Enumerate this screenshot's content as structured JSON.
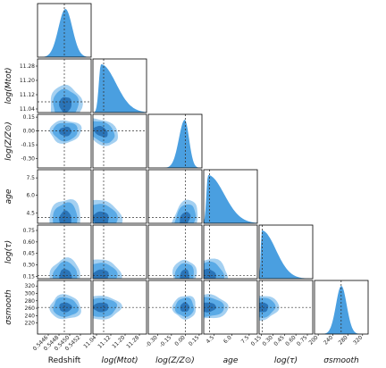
{
  "chart_data": {
    "type": "corner",
    "grid": false,
    "colors": {
      "outer": "#5aaae6",
      "inner": "#2a74b8",
      "hist": "#4a9fe0",
      "frame": "#000000",
      "marker": "#333333"
    },
    "parameters": [
      {
        "key": "redshift",
        "label": "Redshift",
        "ylabel": "",
        "ticks": [
          "0.5446",
          "0.5448",
          "0.5450",
          "0.5452"
        ],
        "yticks": [],
        "range": [
          0.5444,
          0.5454
        ],
        "marker": 0.5449
      },
      {
        "key": "logmtot",
        "label": "log(Mtot)",
        "ylabel": "log(Mtot)",
        "ticks": [
          "11.04",
          "11.12",
          "11.20",
          "11.28"
        ],
        "yticks": [
          "11.28",
          "11.20",
          "11.12",
          "11.04"
        ],
        "range": [
          11.02,
          11.32
        ],
        "marker": 11.08
      },
      {
        "key": "logz",
        "label": "log(Z/Z⊙)",
        "ylabel": "log(Z/Z⊙)",
        "ticks": [
          "-0.30",
          "-0.15",
          "0.00",
          "0.15"
        ],
        "yticks": [
          "0.15",
          "0.00",
          "-0.15",
          "-0.30"
        ],
        "range": [
          -0.4,
          0.18
        ],
        "marker": 0.0
      },
      {
        "key": "age",
        "label": "age",
        "ylabel": "age",
        "ticks": [
          "4.5",
          "6.0",
          "7.5"
        ],
        "yticks": [
          "7.5",
          "6.0",
          "4.5"
        ],
        "range": [
          3.6,
          8.2
        ],
        "marker": 4.1
      },
      {
        "key": "logtau",
        "label": "log(τ)",
        "ylabel": "log(τ)",
        "ticks": [
          "0.15",
          "0.30",
          "0.45",
          "0.60",
          "0.75"
        ],
        "yticks": [
          "0.75",
          "0.60",
          "0.45",
          "0.30",
          "0.15"
        ],
        "range": [
          0.12,
          0.82
        ],
        "marker": 0.16
      },
      {
        "key": "sigma",
        "label": "σsmooth",
        "ylabel": "σsmooth",
        "ticks": [
          "200",
          "240",
          "280",
          "320"
        ],
        "yticks": [
          "320",
          "300",
          "280",
          "260",
          "240",
          "220"
        ],
        "range": [
          190,
          335
        ],
        "marker": 262
      }
    ]
  }
}
